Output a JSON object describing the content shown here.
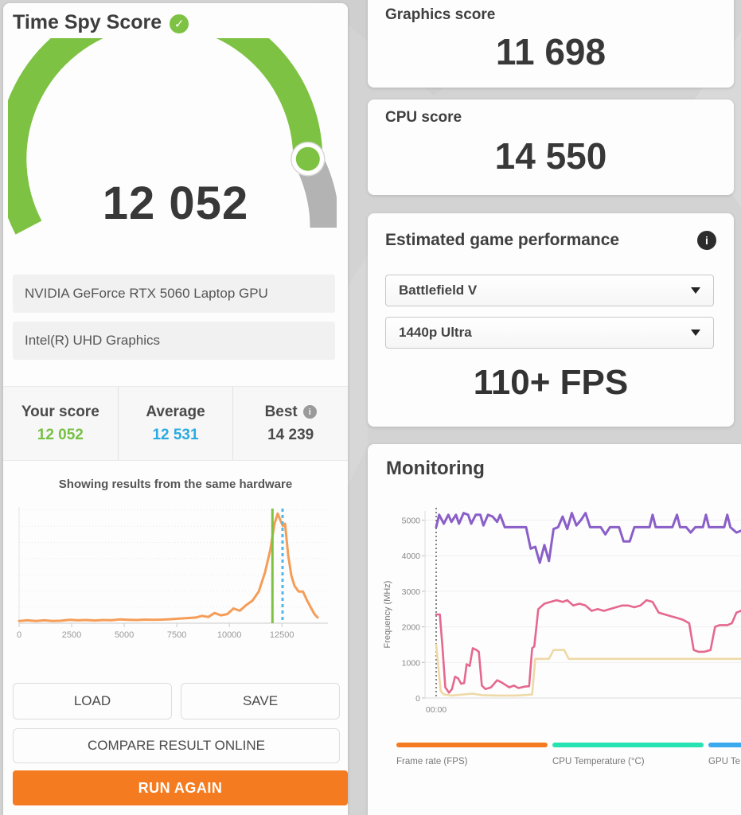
{
  "colors": {
    "accent-orange": "#f47b20",
    "gauge-green": "#7dc242",
    "gauge-gray": "#b3b3b3",
    "score-green": "#76c043",
    "average-blue": "#29abe2",
    "hist-line": "#f59d58"
  },
  "left_panel": {
    "title": "Time Spy Score",
    "gauge": {
      "score_display": "12 052",
      "value": 12052,
      "max": 14239
    },
    "hardware": [
      "NVIDIA GeForce RTX 5060 Laptop GPU",
      "Intel(R) UHD Graphics"
    ],
    "scores": [
      {
        "label": "Your score",
        "value": "12 052",
        "color": "#76c043",
        "info": false
      },
      {
        "label": "Average",
        "value": "12 531",
        "color": "#29abe2",
        "info": false
      },
      {
        "label": "Best",
        "value": "14 239",
        "color": "#4a4a4a",
        "info": true
      }
    ],
    "buttons": {
      "load": "LOAD",
      "save": "SAVE",
      "compare": "COMPARE RESULT ONLINE",
      "run_again": "RUN AGAIN"
    }
  },
  "right_panel": {
    "graphics": {
      "label": "Graphics score",
      "value": "11 698"
    },
    "cpu": {
      "label": "CPU score",
      "value": "14 550"
    },
    "estimated": {
      "title": "Estimated game performance",
      "game": "Battlefield V",
      "preset": "1440p Ultra",
      "fps": "110+ FPS"
    },
    "monitoring": {
      "title": "Monitoring"
    }
  },
  "chart_data": [
    {
      "type": "area",
      "title": "Showing results from the same hardware",
      "xticks": [
        "0",
        "2500",
        "5000",
        "7500",
        "10000",
        "12500"
      ],
      "xtick_step": 2500,
      "x_range": [
        0,
        14500
      ],
      "grid": "dotted-horizontal",
      "line_color": "#f59d58",
      "points_note": "score vs relative frequency (0-1, y axis unlabeled)",
      "points": [
        [
          0,
          0.02
        ],
        [
          400,
          0.025
        ],
        [
          800,
          0.02
        ],
        [
          1200,
          0.025
        ],
        [
          1600,
          0.02
        ],
        [
          2000,
          0.022
        ],
        [
          2400,
          0.03
        ],
        [
          2800,
          0.025
        ],
        [
          3200,
          0.028
        ],
        [
          3600,
          0.024
        ],
        [
          4000,
          0.028
        ],
        [
          4400,
          0.026
        ],
        [
          4800,
          0.034
        ],
        [
          5200,
          0.03
        ],
        [
          5600,
          0.028
        ],
        [
          6000,
          0.032
        ],
        [
          6400,
          0.03
        ],
        [
          6800,
          0.032
        ],
        [
          7200,
          0.035
        ],
        [
          7600,
          0.04
        ],
        [
          8000,
          0.045
        ],
        [
          8400,
          0.05
        ],
        [
          8700,
          0.065
        ],
        [
          9000,
          0.055
        ],
        [
          9300,
          0.09
        ],
        [
          9600,
          0.07
        ],
        [
          9900,
          0.08
        ],
        [
          10200,
          0.13
        ],
        [
          10500,
          0.11
        ],
        [
          10800,
          0.16
        ],
        [
          11100,
          0.2
        ],
        [
          11400,
          0.28
        ],
        [
          11700,
          0.45
        ],
        [
          11950,
          0.65
        ],
        [
          12150,
          0.88
        ],
        [
          12300,
          0.97
        ],
        [
          12450,
          0.9
        ],
        [
          12550,
          0.86
        ],
        [
          12650,
          0.88
        ],
        [
          12800,
          0.6
        ],
        [
          12950,
          0.42
        ],
        [
          13100,
          0.33
        ],
        [
          13300,
          0.28
        ],
        [
          13500,
          0.28
        ],
        [
          13700,
          0.2
        ],
        [
          13900,
          0.13
        ],
        [
          14050,
          0.08
        ],
        [
          14200,
          0.05
        ]
      ],
      "markers": [
        {
          "name": "your-score-line",
          "value": 12052,
          "style": "solid",
          "color": "#7dc242"
        },
        {
          "name": "average-line",
          "value": 12531,
          "style": "dashed",
          "color": "#4cb9e9"
        }
      ]
    },
    {
      "type": "line",
      "ylabel": "Frequency (MHz)",
      "yticks": [
        0,
        1000,
        2000,
        3000,
        4000,
        5000
      ],
      "ylim": [
        0,
        5500
      ],
      "xticks": [
        "00:00"
      ],
      "legend_position": "bottom",
      "series": [
        {
          "name": "purple-line",
          "color": "#8a5fc8",
          "width": 3,
          "points": [
            [
              0,
              4800
            ],
            [
              0.01,
              5150
            ],
            [
              0.025,
              4900
            ],
            [
              0.04,
              5150
            ],
            [
              0.05,
              4950
            ],
            [
              0.065,
              5150
            ],
            [
              0.075,
              4900
            ],
            [
              0.09,
              5200
            ],
            [
              0.105,
              5150
            ],
            [
              0.115,
              4900
            ],
            [
              0.13,
              5150
            ],
            [
              0.145,
              5150
            ],
            [
              0.155,
              4850
            ],
            [
              0.17,
              5150
            ],
            [
              0.185,
              5100
            ],
            [
              0.2,
              4950
            ],
            [
              0.21,
              5150
            ],
            [
              0.225,
              4800
            ],
            [
              0.295,
              4800
            ],
            [
              0.31,
              4200
            ],
            [
              0.325,
              4250
            ],
            [
              0.34,
              3800
            ],
            [
              0.355,
              4300
            ],
            [
              0.37,
              3850
            ],
            [
              0.385,
              4750
            ],
            [
              0.4,
              4800
            ],
            [
              0.415,
              5100
            ],
            [
              0.43,
              4750
            ],
            [
              0.445,
              5200
            ],
            [
              0.46,
              4850
            ],
            [
              0.475,
              5000
            ],
            [
              0.49,
              5200
            ],
            [
              0.505,
              4800
            ],
            [
              0.54,
              4800
            ],
            [
              0.555,
              4600
            ],
            [
              0.57,
              4800
            ],
            [
              0.6,
              4800
            ],
            [
              0.615,
              4400
            ],
            [
              0.635,
              4400
            ],
            [
              0.65,
              4800
            ],
            [
              0.7,
              4800
            ],
            [
              0.71,
              5150
            ],
            [
              0.72,
              4800
            ],
            [
              0.775,
              4800
            ],
            [
              0.79,
              5150
            ],
            [
              0.8,
              4800
            ],
            [
              0.82,
              4800
            ],
            [
              0.835,
              4650
            ],
            [
              0.85,
              4800
            ],
            [
              0.875,
              4800
            ],
            [
              0.885,
              5150
            ],
            [
              0.895,
              4800
            ],
            [
              0.945,
              4800
            ],
            [
              0.955,
              5150
            ],
            [
              0.965,
              4800
            ],
            [
              0.985,
              4650
            ],
            [
              1,
              4700
            ]
          ]
        },
        {
          "name": "pink-line",
          "color": "#e5688e",
          "width": 2.6,
          "points": [
            [
              0,
              2350
            ],
            [
              0.012,
              2350
            ],
            [
              0.02,
              1500
            ],
            [
              0.03,
              300
            ],
            [
              0.042,
              150
            ],
            [
              0.052,
              250
            ],
            [
              0.062,
              600
            ],
            [
              0.072,
              550
            ],
            [
              0.082,
              400
            ],
            [
              0.092,
              420
            ],
            [
              0.1,
              950
            ],
            [
              0.11,
              900
            ],
            [
              0.12,
              1400
            ],
            [
              0.132,
              1350
            ],
            [
              0.14,
              1300
            ],
            [
              0.15,
              350
            ],
            [
              0.162,
              250
            ],
            [
              0.18,
              300
            ],
            [
              0.2,
              500
            ],
            [
              0.212,
              450
            ],
            [
              0.225,
              380
            ],
            [
              0.24,
              300
            ],
            [
              0.255,
              350
            ],
            [
              0.27,
              280
            ],
            [
              0.29,
              320
            ],
            [
              0.305,
              330
            ],
            [
              0.315,
              1400
            ],
            [
              0.322,
              1450
            ],
            [
              0.335,
              2500
            ],
            [
              0.355,
              2650
            ],
            [
              0.375,
              2700
            ],
            [
              0.395,
              2750
            ],
            [
              0.415,
              2700
            ],
            [
              0.43,
              2750
            ],
            [
              0.45,
              2600
            ],
            [
              0.47,
              2650
            ],
            [
              0.49,
              2600
            ],
            [
              0.51,
              2450
            ],
            [
              0.53,
              2500
            ],
            [
              0.55,
              2450
            ],
            [
              0.57,
              2500
            ],
            [
              0.59,
              2550
            ],
            [
              0.61,
              2600
            ],
            [
              0.63,
              2600
            ],
            [
              0.65,
              2550
            ],
            [
              0.67,
              2600
            ],
            [
              0.69,
              2750
            ],
            [
              0.71,
              2700
            ],
            [
              0.73,
              2400
            ],
            [
              0.75,
              2350
            ],
            [
              0.77,
              2300
            ],
            [
              0.79,
              2250
            ],
            [
              0.81,
              2200
            ],
            [
              0.83,
              2100
            ],
            [
              0.845,
              1350
            ],
            [
              0.86,
              1300
            ],
            [
              0.88,
              1300
            ],
            [
              0.9,
              1350
            ],
            [
              0.915,
              2000
            ],
            [
              0.93,
              2050
            ],
            [
              0.955,
              2050
            ],
            [
              0.97,
              2100
            ],
            [
              0.985,
              2400
            ],
            [
              1,
              2450
            ]
          ]
        },
        {
          "name": "tan-line",
          "color": "#eed9a6",
          "width": 2.6,
          "points": [
            [
              0,
              1500
            ],
            [
              0.015,
              200
            ],
            [
              0.025,
              100
            ],
            [
              0.05,
              70
            ],
            [
              0.09,
              100
            ],
            [
              0.12,
              120
            ],
            [
              0.15,
              80
            ],
            [
              0.2,
              70
            ],
            [
              0.26,
              70
            ],
            [
              0.3,
              90
            ],
            [
              0.315,
              100
            ],
            [
              0.325,
              1100
            ],
            [
              0.37,
              1100
            ],
            [
              0.385,
              1350
            ],
            [
              0.42,
              1350
            ],
            [
              0.435,
              1100
            ],
            [
              0.5,
              1100
            ],
            [
              0.6,
              1100
            ],
            [
              0.7,
              1100
            ],
            [
              0.8,
              1100
            ],
            [
              0.9,
              1100
            ],
            [
              1,
              1100
            ]
          ]
        }
      ],
      "legend": [
        {
          "label": "Frame rate (FPS)",
          "color": "#f47b20"
        },
        {
          "label": "CPU Temperature (°C)",
          "color": "#27e2b1"
        },
        {
          "label": "GPU Te",
          "color": "#3ba9ee"
        }
      ]
    }
  ]
}
